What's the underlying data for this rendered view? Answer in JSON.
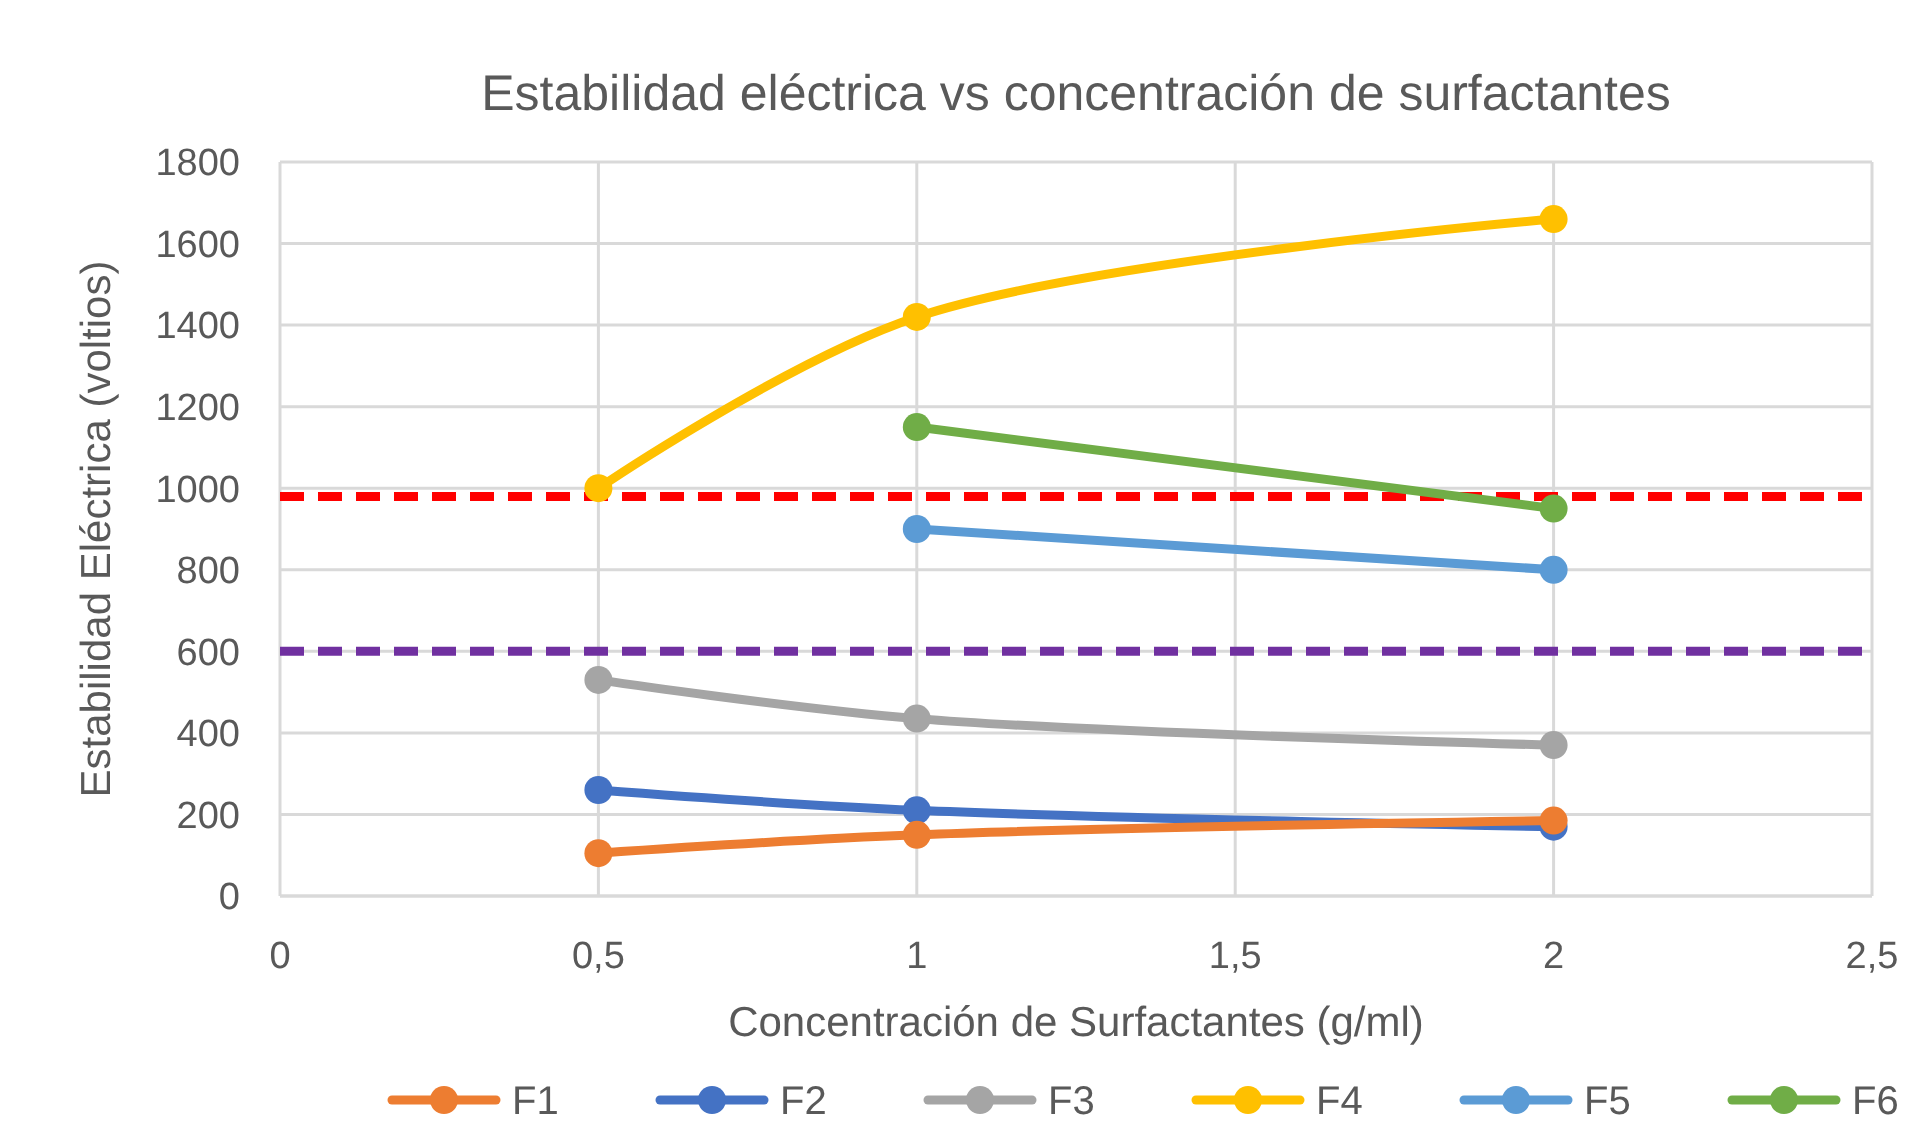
{
  "chart_data": {
    "type": "line",
    "title": "Estabilidad eléctrica vs concentración de surfactantes",
    "xlabel": "Concentración de Surfactantes (g/ml)",
    "ylabel": "Estabilidad Eléctrica (voltios)",
    "x": [
      0.5,
      1,
      2
    ],
    "series": [
      {
        "name": "F1",
        "color": "#ed7d31",
        "values": [
          105,
          150,
          185
        ]
      },
      {
        "name": "F2",
        "color": "#4472c4",
        "values": [
          260,
          210,
          170
        ]
      },
      {
        "name": "F3",
        "color": "#a5a5a5",
        "values": [
          530,
          435,
          370
        ]
      },
      {
        "name": "F4",
        "color": "#ffc000",
        "values": [
          1000,
          1420,
          1660
        ]
      },
      {
        "name": "F5",
        "color": "#5b9bd5",
        "values": [
          null,
          900,
          800
        ]
      },
      {
        "name": "F6",
        "color": "#70ad47",
        "values": [
          null,
          1150,
          950
        ]
      }
    ],
    "xlim": [
      0,
      2.5
    ],
    "xticks": [
      0,
      {
        "value": 0.5,
        "label": "0,5"
      },
      1,
      {
        "value": 1.5,
        "label": "1,5"
      },
      2,
      {
        "value": 2.5,
        "label": "2,5"
      }
    ],
    "ylim": [
      0,
      1800
    ],
    "yticks": [
      0,
      200,
      400,
      600,
      800,
      1000,
      1200,
      1400,
      1600,
      1800
    ],
    "ref_lines": [
      {
        "axis": "y",
        "value": 980,
        "color": "#ff0000",
        "line_style": "dashed"
      },
      {
        "axis": "y",
        "value": 600,
        "color": "#7030a0",
        "line_style": "dashed"
      }
    ],
    "grid": true,
    "legend": "bottom",
    "marker": "circle",
    "line_style": "solid"
  }
}
